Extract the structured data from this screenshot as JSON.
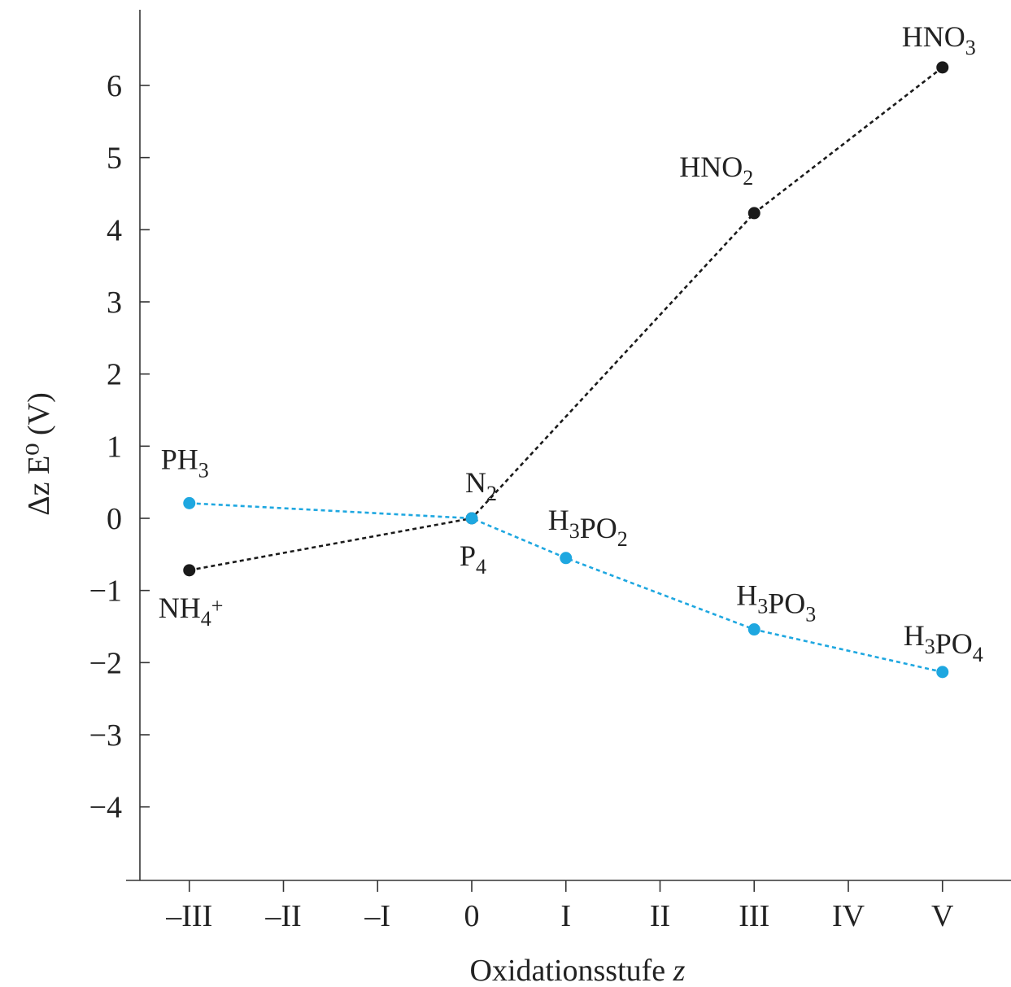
{
  "chart_data": {
    "type": "line",
    "title": "",
    "xlabel": "Oxidationsstufe",
    "xlabel_var": "z",
    "ylabel": "Δz E⁰ (V)",
    "ylim": [
      -5,
      7
    ],
    "y_ticks": [
      "6",
      "5",
      "4",
      "3",
      "2",
      "1",
      "0",
      "−1",
      "−2",
      "−3",
      "−4"
    ],
    "y_tick_values": [
      6,
      5,
      4,
      3,
      2,
      1,
      0,
      -1,
      -2,
      -3,
      -4
    ],
    "x_ticks": [
      "–III",
      "–II",
      "–I",
      "0",
      "I",
      "II",
      "III",
      "IV",
      "V"
    ],
    "x_tick_values": [
      -3,
      -2,
      -1,
      0,
      1,
      2,
      3,
      4,
      5
    ],
    "xlim": [
      -3.5,
      5.5
    ],
    "grid": false,
    "line_style": "dotted",
    "series": [
      {
        "color": "#1a1a1a",
        "points": [
          {
            "x": -3,
            "y": -0.72,
            "label": "NH₄⁺"
          },
          {
            "x": 0,
            "y": 0,
            "label": "N₂"
          },
          {
            "x": 3,
            "y": 4.23,
            "label": "HNO₂"
          },
          {
            "x": 5,
            "y": 6.25,
            "label": "HNO₃"
          }
        ]
      },
      {
        "color": "#1ea7e0",
        "points": [
          {
            "x": -3,
            "y": 0.21,
            "label": "PH₃"
          },
          {
            "x": 0,
            "y": 0,
            "label": "P₄"
          },
          {
            "x": 1,
            "y": -0.55,
            "label": "H₃PO₂"
          },
          {
            "x": 3,
            "y": -1.54,
            "label": "H₃PO₃"
          },
          {
            "x": 5,
            "y": -2.13,
            "label": "H₃PO₄"
          }
        ]
      }
    ]
  }
}
